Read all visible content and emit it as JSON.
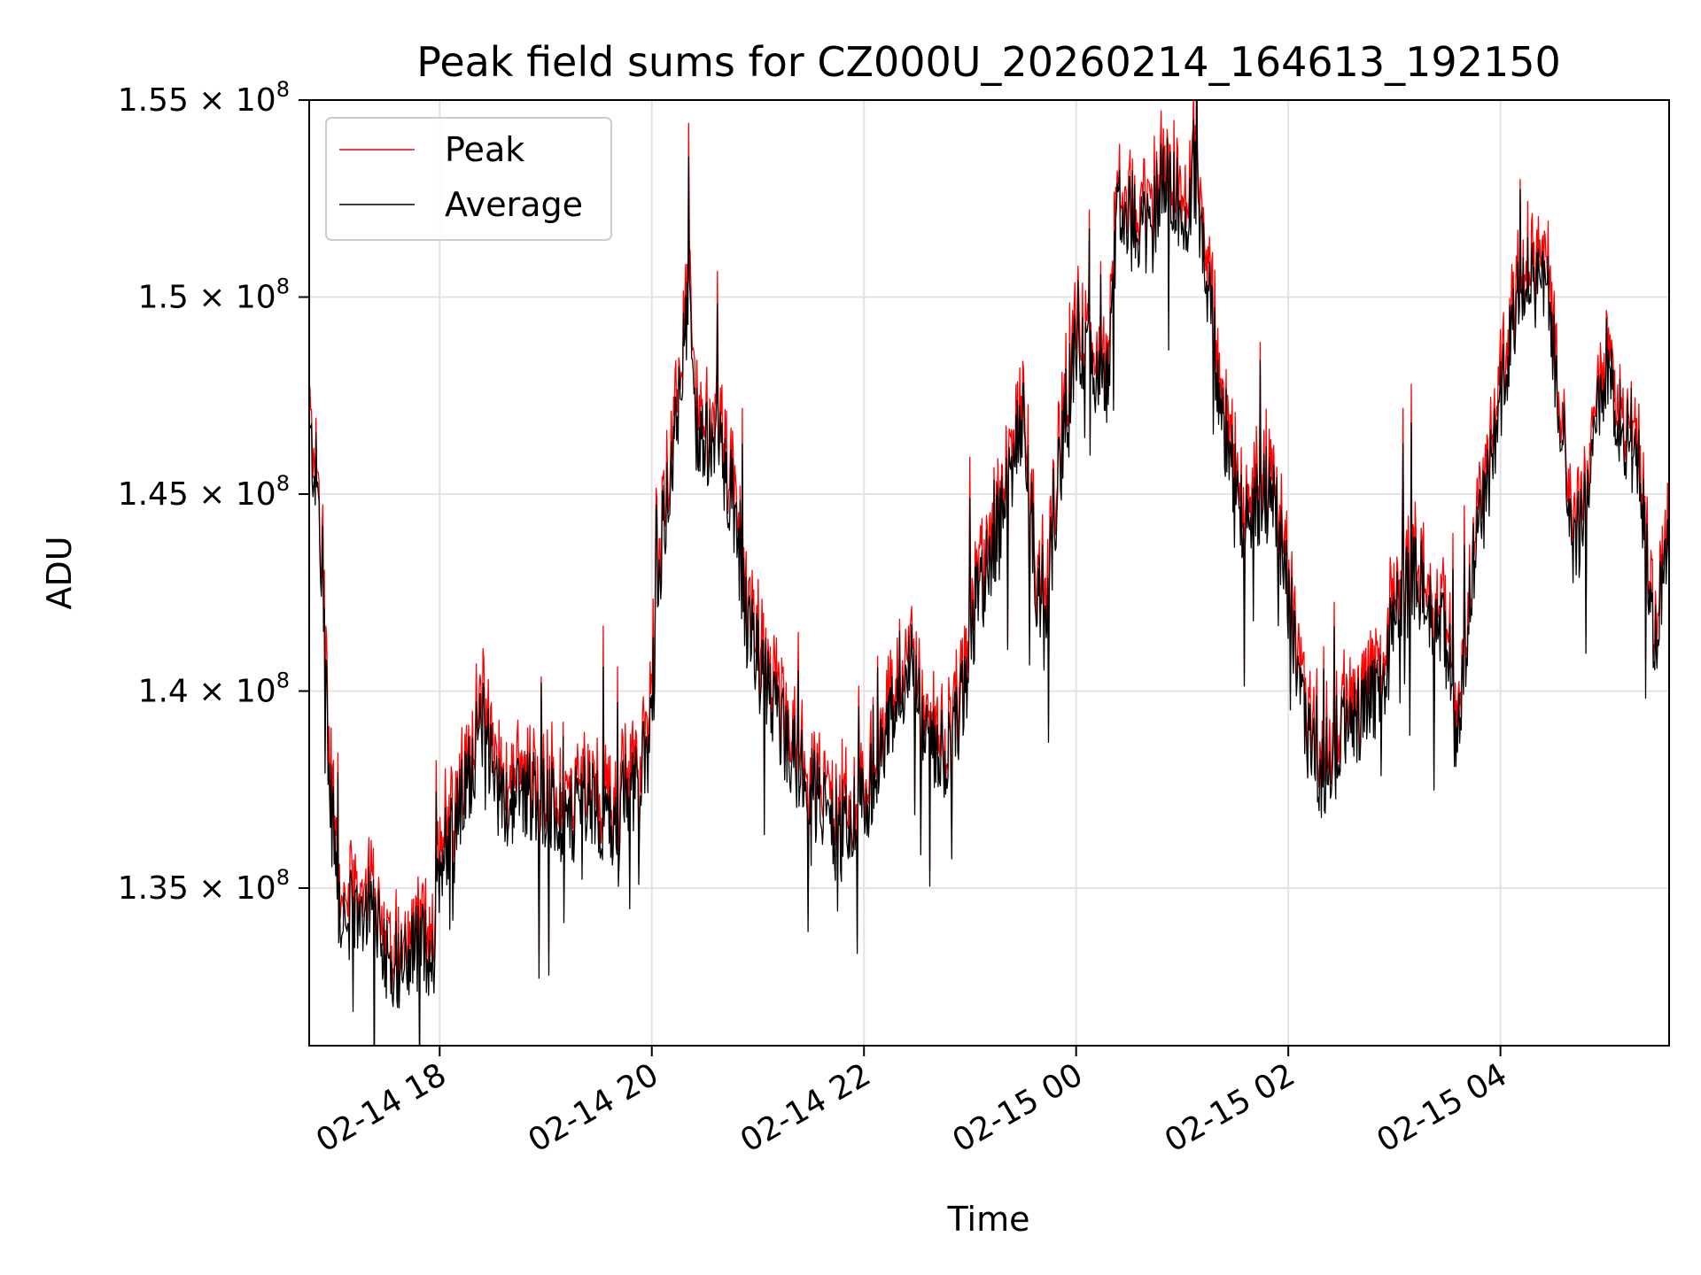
{
  "chart_data": {
    "type": "line",
    "title": "Peak field sums for CZ000U_20260214_164613_192150",
    "xlabel": "Time",
    "ylabel": "ADU",
    "x_unit": "hours since 2026-02-14 00:00",
    "xlim": [
      16.77,
      29.59
    ],
    "ylim": [
      131000000,
      155000000
    ],
    "grid": true,
    "legend_position": "upper-left",
    "xticks": [
      {
        "value": 18,
        "label": "02-14 18"
      },
      {
        "value": 20,
        "label": "02-14 20"
      },
      {
        "value": 22,
        "label": "02-14 22"
      },
      {
        "value": 24,
        "label": "02-15 00"
      },
      {
        "value": 26,
        "label": "02-15 02"
      },
      {
        "value": 28,
        "label": "02-15 04"
      }
    ],
    "yticks": [
      {
        "value": 135000000,
        "mantissa": "1.35",
        "base": "10",
        "exponent": "8"
      },
      {
        "value": 140000000,
        "mantissa": "1.4",
        "base": "10",
        "exponent": "8"
      },
      {
        "value": 145000000,
        "mantissa": "1.45",
        "base": "10",
        "exponent": "8"
      },
      {
        "value": 150000000,
        "mantissa": "1.5",
        "base": "10",
        "exponent": "8"
      },
      {
        "value": 155000000,
        "mantissa": "1.55",
        "base": "10",
        "exponent": "8"
      }
    ],
    "series": [
      {
        "name": "Peak",
        "color": "#ff0000",
        "anchors": [
          [
            16.77,
            146.4
          ],
          [
            16.85,
            145.2
          ],
          [
            16.95,
            138.5
          ],
          [
            17.05,
            134.5
          ],
          [
            17.2,
            134.2
          ],
          [
            17.35,
            134.8
          ],
          [
            17.5,
            133.3
          ],
          [
            17.65,
            133.0
          ],
          [
            17.8,
            133.6
          ],
          [
            17.95,
            133.2
          ],
          [
            18.0,
            135.8
          ],
          [
            18.2,
            137.0
          ],
          [
            18.4,
            139.2
          ],
          [
            18.6,
            137.0
          ],
          [
            18.8,
            137.5
          ],
          [
            19.0,
            137.2
          ],
          [
            19.2,
            136.5
          ],
          [
            19.4,
            137.5
          ],
          [
            19.6,
            136.5
          ],
          [
            19.8,
            137.5
          ],
          [
            19.95,
            138.0
          ],
          [
            20.1,
            144.0
          ],
          [
            20.25,
            147.5
          ],
          [
            20.35,
            150.0
          ],
          [
            20.45,
            146.0
          ],
          [
            20.6,
            146.5
          ],
          [
            20.75,
            145.0
          ],
          [
            20.9,
            141.5
          ],
          [
            21.1,
            140.0
          ],
          [
            21.3,
            138.5
          ],
          [
            21.5,
            137.5
          ],
          [
            21.7,
            136.8
          ],
          [
            21.85,
            136.5
          ],
          [
            22.0,
            137.0
          ],
          [
            22.15,
            138.5
          ],
          [
            22.3,
            139.5
          ],
          [
            22.45,
            140.5
          ],
          [
            22.6,
            138.5
          ],
          [
            22.8,
            138.3
          ],
          [
            22.95,
            140.0
          ],
          [
            23.05,
            142.0
          ],
          [
            23.2,
            143.5
          ],
          [
            23.35,
            145.0
          ],
          [
            23.5,
            147.0
          ],
          [
            23.6,
            143.5
          ],
          [
            23.7,
            141.5
          ],
          [
            23.8,
            144.5
          ],
          [
            23.9,
            147.0
          ],
          [
            24.0,
            148.8
          ],
          [
            24.15,
            148.2
          ],
          [
            24.3,
            148.0
          ],
          [
            24.4,
            152.5
          ],
          [
            24.55,
            152.0
          ],
          [
            24.7,
            151.5
          ],
          [
            24.85,
            153.5
          ],
          [
            25.0,
            152.0
          ],
          [
            25.15,
            153.0
          ],
          [
            25.25,
            150.0
          ],
          [
            25.4,
            146.5
          ],
          [
            25.55,
            144.5
          ],
          [
            25.7,
            144.8
          ],
          [
            25.85,
            145.0
          ],
          [
            26.0,
            142.5
          ],
          [
            26.15,
            139.0
          ],
          [
            26.3,
            137.8
          ],
          [
            26.5,
            139.0
          ],
          [
            26.7,
            139.5
          ],
          [
            26.9,
            140.0
          ],
          [
            27.0,
            142.0
          ],
          [
            27.15,
            143.0
          ],
          [
            27.3,
            142.5
          ],
          [
            27.45,
            141.5
          ],
          [
            27.6,
            138.5
          ],
          [
            27.75,
            143.5
          ],
          [
            27.9,
            145.5
          ],
          [
            28.05,
            148.0
          ],
          [
            28.2,
            150.5
          ],
          [
            28.3,
            150.5
          ],
          [
            28.45,
            150.0
          ],
          [
            28.55,
            147.5
          ],
          [
            28.7,
            143.5
          ],
          [
            28.85,
            145.5
          ],
          [
            29.0,
            148.5
          ],
          [
            29.15,
            146.5
          ],
          [
            29.3,
            146.0
          ],
          [
            29.45,
            141.0
          ],
          [
            29.59,
            144.0
          ]
        ]
      },
      {
        "name": "Average",
        "color": "#000000"
      }
    ]
  }
}
